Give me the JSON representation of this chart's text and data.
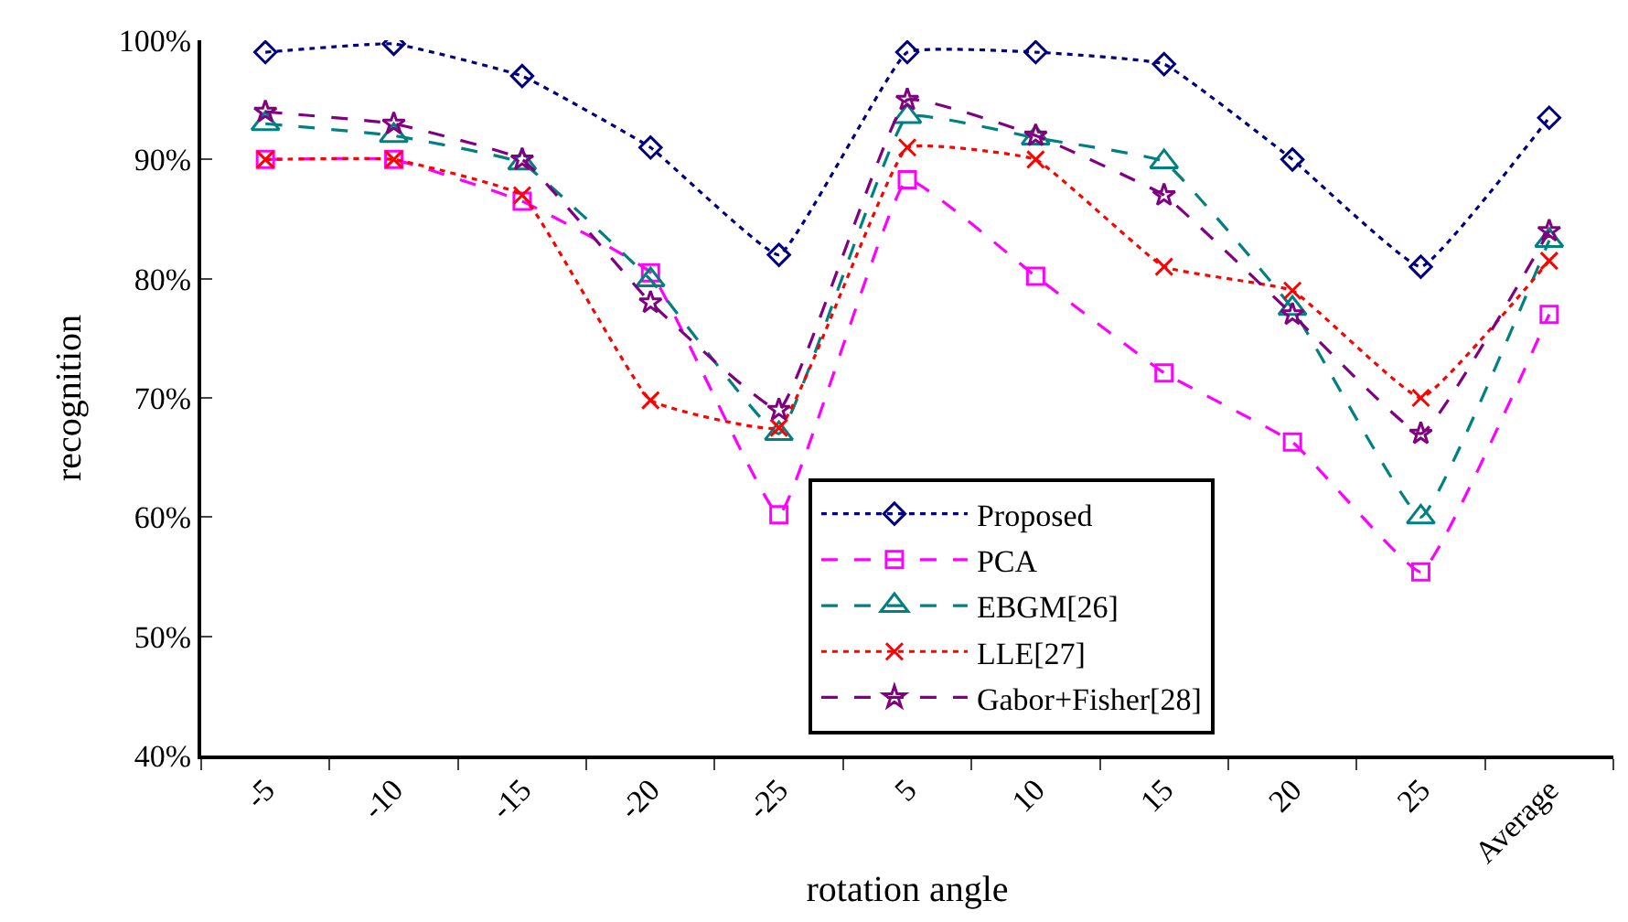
{
  "chart_data": {
    "type": "line",
    "xlabel": "rotation angle",
    "ylabel": "recognition",
    "categories": [
      "-5",
      "-10",
      "-15",
      "-20",
      "-25",
      "5",
      "10",
      "15",
      "20",
      "25",
      "Average"
    ],
    "series": [
      {
        "name": "Proposed",
        "color": "#000080",
        "marker": "diamond",
        "line_style": "dotted",
        "values": [
          99,
          99.7,
          97,
          91,
          82,
          99,
          99,
          98,
          90,
          81,
          93.5
        ]
      },
      {
        "name": "PCA",
        "color": "#ff00ff",
        "marker": "square",
        "line_style": "dashed",
        "values": [
          90,
          90,
          86.5,
          80.5,
          60.2,
          88.3,
          80.2,
          72.1,
          66.3,
          55.4,
          77
        ]
      },
      {
        "name": "EBGM[26]",
        "color": "#008080",
        "marker": "triangle",
        "line_style": "dashed",
        "values": [
          93,
          92,
          89.7,
          79.9,
          67,
          93.6,
          91.8,
          89.8,
          77.5,
          60,
          83.2
        ]
      },
      {
        "name": "LLE[27]",
        "color": "#ff0000",
        "marker": "cross",
        "line_style": "dotted",
        "values": [
          90,
          90,
          87,
          69.8,
          67.5,
          91,
          90,
          81,
          79,
          70,
          81.5
        ]
      },
      {
        "name": "Gabor+Fisher[28]",
        "color": "#800080",
        "marker": "star",
        "line_style": "dashed",
        "values": [
          94,
          93,
          90,
          78,
          69,
          95,
          92,
          87,
          77,
          67,
          84
        ]
      }
    ],
    "ylim": [
      40,
      100
    ],
    "yticks": [
      {
        "value": 40,
        "label": "40%"
      },
      {
        "value": 50,
        "label": "50%"
      },
      {
        "value": 60,
        "label": "60%"
      },
      {
        "value": 70,
        "label": "70%"
      },
      {
        "value": 80,
        "label": "80%"
      },
      {
        "value": 90,
        "label": "90%"
      },
      {
        "value": 100,
        "label": "100%"
      }
    ],
    "grid": false,
    "legend": "bottom right"
  }
}
